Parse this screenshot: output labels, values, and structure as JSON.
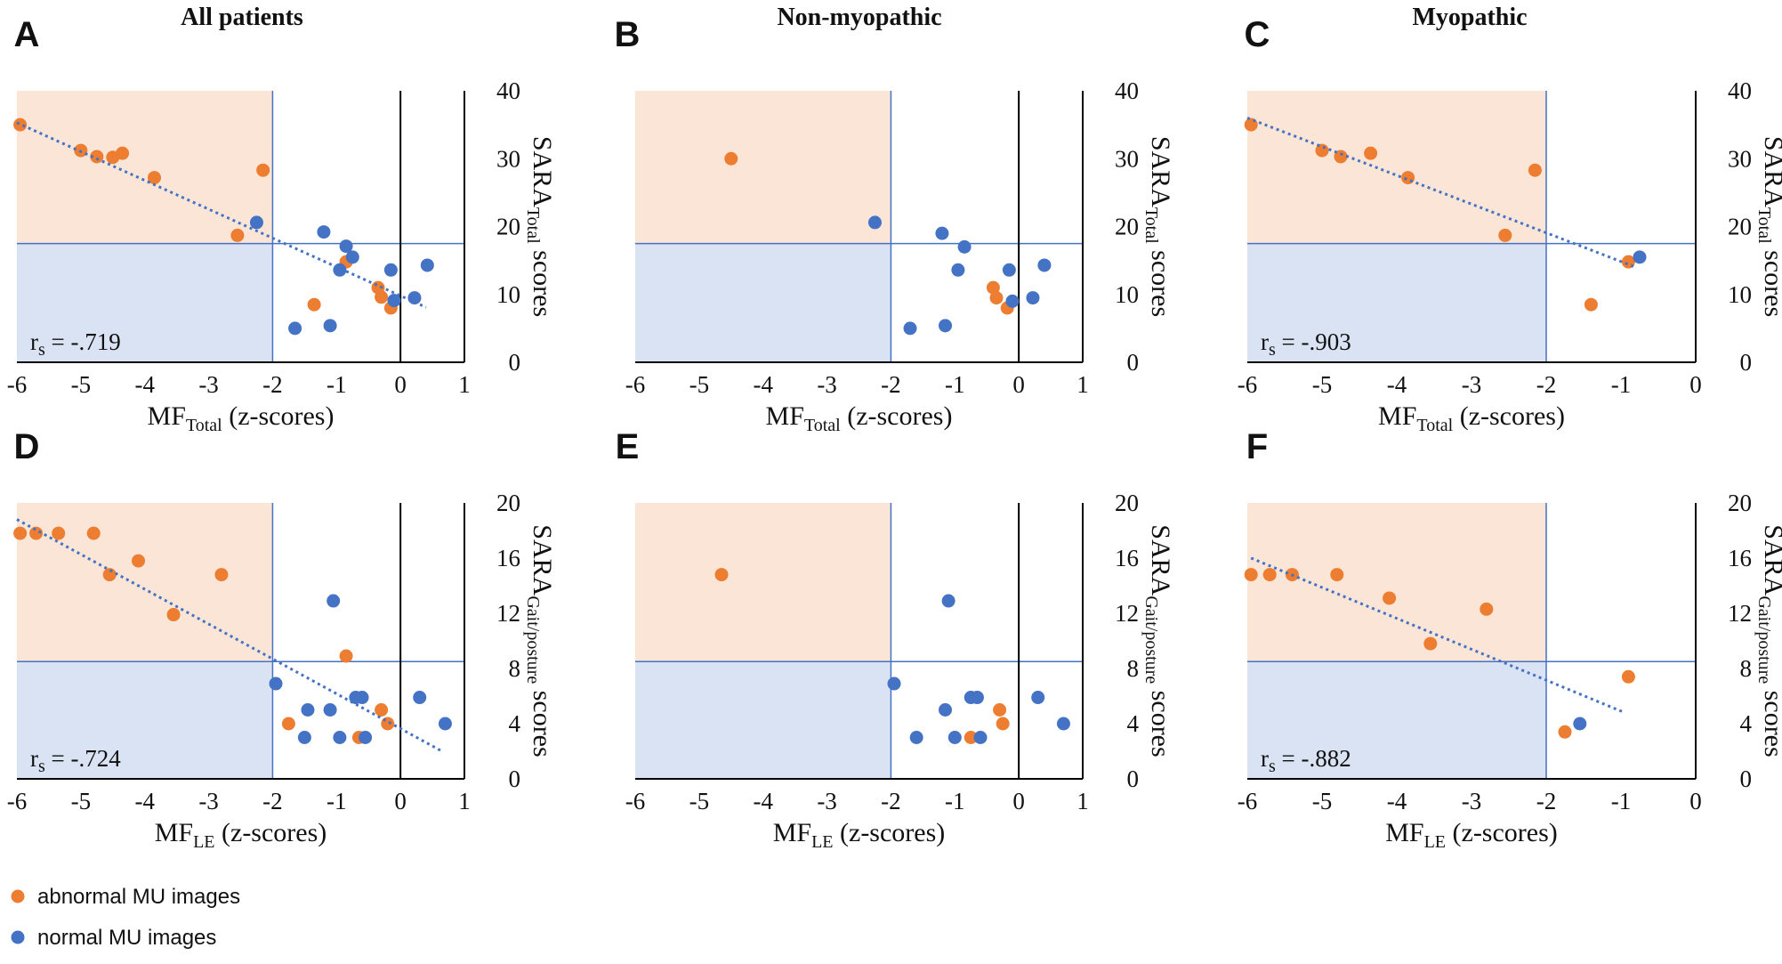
{
  "colors": {
    "abnormal": "#ED7D31",
    "normal": "#4472C4",
    "abnormal_region": "#FBE5D6",
    "normal_region": "#DAE3F3",
    "threshold_line": "#4472C4",
    "trend": "#4472C4"
  },
  "column_titles": [
    "All patients",
    "Non-myopathic",
    "Myopathic"
  ],
  "legend": [
    {
      "label": "abnormal MU images",
      "series": "abnormal"
    },
    {
      "label": "normal MU images",
      "series": "normal"
    }
  ],
  "chart_data": [
    {
      "panel": "A",
      "type": "scatter",
      "xlim": [
        -6,
        1
      ],
      "xticks": [
        -6,
        -5,
        -4,
        -3,
        -2,
        -1,
        0,
        1
      ],
      "ylim": [
        0,
        40
      ],
      "yticks": [
        0,
        10,
        20,
        30,
        40
      ],
      "xlabel_main": "MF",
      "xlabel_sub": "Total",
      "xlabel_tail": " (z-scores)",
      "ylabel_main": "SARA",
      "ylabel_sub": "Total",
      "ylabel_tail": " scores",
      "x_threshold": -2,
      "y_threshold": 17.5,
      "correlation": "-.719",
      "trendline": {
        "x1": -6,
        "y1": 35.3,
        "x2": 0.4,
        "y2": 8.1
      },
      "series": [
        {
          "name": "abnormal",
          "points": [
            [
              -5.95,
              35
            ],
            [
              -5.0,
              31.2
            ],
            [
              -4.75,
              30.3
            ],
            [
              -4.5,
              30.2
            ],
            [
              -4.35,
              30.8
            ],
            [
              -3.85,
              27.2
            ],
            [
              -2.55,
              18.7
            ],
            [
              -2.15,
              28.3
            ],
            [
              -0.85,
              14.8
            ],
            [
              -0.35,
              11
            ],
            [
              -0.3,
              9.6
            ],
            [
              -0.15,
              8
            ],
            [
              -1.35,
              8.5
            ]
          ]
        },
        {
          "name": "normal",
          "points": [
            [
              -2.25,
              20.6
            ],
            [
              -1.2,
              19.2
            ],
            [
              -0.85,
              17.1
            ],
            [
              -0.95,
              13.6
            ],
            [
              -0.75,
              15.5
            ],
            [
              -0.15,
              13.6
            ],
            [
              0.42,
              14.3
            ],
            [
              -0.1,
              9.1
            ],
            [
              0.22,
              9.5
            ],
            [
              -1.65,
              5
            ],
            [
              -1.1,
              5.4
            ]
          ]
        }
      ]
    },
    {
      "panel": "B",
      "type": "scatter",
      "xlim": [
        -6,
        1
      ],
      "xticks": [
        -6,
        -5,
        -4,
        -3,
        -2,
        -1,
        0,
        1
      ],
      "ylim": [
        0,
        40
      ],
      "yticks": [
        0,
        10,
        20,
        30,
        40
      ],
      "xlabel_main": "MF",
      "xlabel_sub": "Total",
      "xlabel_tail": " (z-scores)",
      "ylabel_main": "SARA",
      "ylabel_sub": "Total",
      "ylabel_tail": " scores",
      "x_threshold": -2,
      "y_threshold": 17.5,
      "series": [
        {
          "name": "abnormal",
          "points": [
            [
              -4.5,
              30
            ],
            [
              -0.4,
              11
            ],
            [
              -0.35,
              9.5
            ],
            [
              -0.18,
              8
            ]
          ]
        },
        {
          "name": "normal",
          "points": [
            [
              -2.25,
              20.6
            ],
            [
              -1.2,
              19
            ],
            [
              -0.85,
              17
            ],
            [
              -0.95,
              13.6
            ],
            [
              -0.15,
              13.6
            ],
            [
              0.4,
              14.3
            ],
            [
              -0.1,
              9
            ],
            [
              0.22,
              9.5
            ],
            [
              -1.7,
              5
            ],
            [
              -1.15,
              5.4
            ]
          ]
        }
      ]
    },
    {
      "panel": "C",
      "type": "scatter",
      "xlim": [
        -6,
        0
      ],
      "xticks": [
        -6,
        -5,
        -4,
        -3,
        -2,
        -1,
        0
      ],
      "ylim": [
        0,
        40
      ],
      "yticks": [
        0,
        10,
        20,
        30,
        40
      ],
      "xlabel_main": "MF",
      "xlabel_sub": "Total",
      "xlabel_tail": " (z-scores)",
      "ylabel_main": "SARA",
      "ylabel_sub": "Total",
      "ylabel_tail": " scores",
      "x_threshold": -2,
      "y_threshold": 17.5,
      "correlation": "-.903",
      "trendline": {
        "x1": -6,
        "y1": 36,
        "x2": -0.8,
        "y2": 14
      },
      "series": [
        {
          "name": "abnormal",
          "points": [
            [
              -5.95,
              35
            ],
            [
              -5.0,
              31.2
            ],
            [
              -4.75,
              30.3
            ],
            [
              -4.35,
              30.8
            ],
            [
              -3.85,
              27.2
            ],
            [
              -2.55,
              18.7
            ],
            [
              -2.15,
              28.3
            ],
            [
              -1.4,
              8.5
            ],
            [
              -0.9,
              14.8
            ]
          ]
        },
        {
          "name": "normal",
          "points": [
            [
              -0.75,
              15.5
            ]
          ]
        }
      ]
    },
    {
      "panel": "D",
      "type": "scatter",
      "xlim": [
        -6,
        1
      ],
      "xticks": [
        -6,
        -5,
        -4,
        -3,
        -2,
        -1,
        0,
        1
      ],
      "ylim": [
        0,
        20
      ],
      "yticks": [
        0,
        4,
        8,
        12,
        16,
        20
      ],
      "xlabel_main": "MF",
      "xlabel_sub": "LE",
      "xlabel_tail": " (z-scores)",
      "ylabel_main": "SARA",
      "ylabel_sub": "Gait/posture",
      "ylabel_tail": " scores",
      "x_threshold": -2,
      "y_threshold": 8.5,
      "correlation": "-.724",
      "trendline": {
        "x1": -6,
        "y1": 18.8,
        "x2": 0.65,
        "y2": 2
      },
      "series": [
        {
          "name": "abnormal",
          "points": [
            [
              -5.95,
              17.8
            ],
            [
              -5.7,
              17.8
            ],
            [
              -5.35,
              17.8
            ],
            [
              -4.8,
              17.8
            ],
            [
              -4.55,
              14.8
            ],
            [
              -4.1,
              15.8
            ],
            [
              -3.55,
              11.9
            ],
            [
              -2.8,
              14.8
            ],
            [
              -1.75,
              4
            ],
            [
              -0.85,
              8.9
            ],
            [
              -0.65,
              3
            ],
            [
              -0.3,
              5
            ],
            [
              -0.2,
              4
            ]
          ]
        },
        {
          "name": "normal",
          "points": [
            [
              -1.95,
              6.9
            ],
            [
              -1.05,
              12.9
            ],
            [
              -1.45,
              5
            ],
            [
              -1.1,
              5
            ],
            [
              -0.7,
              5.9
            ],
            [
              -0.6,
              5.9
            ],
            [
              -1.5,
              3
            ],
            [
              -0.95,
              3
            ],
            [
              -0.55,
              3
            ],
            [
              0.3,
              5.9
            ],
            [
              0.7,
              4
            ]
          ]
        }
      ]
    },
    {
      "panel": "E",
      "type": "scatter",
      "xlim": [
        -6,
        1
      ],
      "xticks": [
        -6,
        -5,
        -4,
        -3,
        -2,
        -1,
        0,
        1
      ],
      "ylim": [
        0,
        20
      ],
      "yticks": [
        0,
        4,
        8,
        12,
        16,
        20
      ],
      "xlabel_main": "MF",
      "xlabel_sub": "LE",
      "xlabel_tail": " (z-scores)",
      "ylabel_main": "SARA",
      "ylabel_sub": "Gait/posture",
      "ylabel_tail": " scores",
      "x_threshold": -2,
      "y_threshold": 8.5,
      "series": [
        {
          "name": "abnormal",
          "points": [
            [
              -4.65,
              14.8
            ],
            [
              -0.3,
              5
            ],
            [
              -0.25,
              4
            ],
            [
              -0.75,
              3
            ]
          ]
        },
        {
          "name": "normal",
          "points": [
            [
              -1.95,
              6.9
            ],
            [
              -1.1,
              12.9
            ],
            [
              -1.15,
              5
            ],
            [
              -0.75,
              5.9
            ],
            [
              -0.65,
              5.9
            ],
            [
              -1.6,
              3
            ],
            [
              -1.0,
              3
            ],
            [
              -0.6,
              3
            ],
            [
              0.3,
              5.9
            ],
            [
              0.7,
              4
            ]
          ]
        }
      ]
    },
    {
      "panel": "F",
      "type": "scatter",
      "xlim": [
        -6,
        0
      ],
      "xticks": [
        -6,
        -5,
        -4,
        -3,
        -2,
        -1,
        0
      ],
      "ylim": [
        0,
        20
      ],
      "yticks": [
        0,
        4,
        8,
        12,
        16,
        20
      ],
      "xlabel_main": "MF",
      "xlabel_sub": "LE",
      "xlabel_tail": " (z-scores)",
      "ylabel_main": "SARA",
      "ylabel_sub": "Gait/posture",
      "ylabel_tail": " scores",
      "x_threshold": -2,
      "y_threshold": 8.5,
      "correlation": "-.882",
      "trendline": {
        "x1": -5.95,
        "y1": 16,
        "x2": -0.95,
        "y2": 4.8
      },
      "series": [
        {
          "name": "abnormal",
          "points": [
            [
              -5.95,
              14.8
            ],
            [
              -5.7,
              14.8
            ],
            [
              -5.4,
              14.8
            ],
            [
              -4.8,
              14.8
            ],
            [
              -4.1,
              13.1
            ],
            [
              -3.55,
              9.8
            ],
            [
              -2.8,
              12.3
            ],
            [
              -1.75,
              3.4
            ],
            [
              -0.9,
              7.4
            ]
          ]
        },
        {
          "name": "normal",
          "points": [
            [
              -1.55,
              4
            ]
          ]
        }
      ]
    }
  ]
}
